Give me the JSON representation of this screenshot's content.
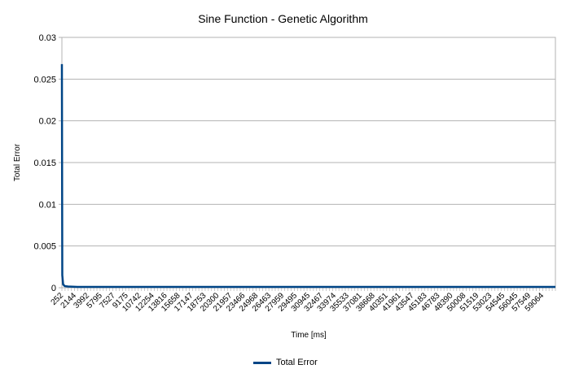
{
  "chart_data": {
    "type": "line",
    "title": "Sine Function - Genetic Algorithm",
    "xlabel": "Time [ms]",
    "ylabel": "Total Error",
    "ylim": [
      0,
      0.03
    ],
    "yticks": [
      "0",
      "0.005",
      "0.01",
      "0.015",
      "0.02",
      "0.025",
      "0.03"
    ],
    "x_tick_labels": [
      "252",
      "2144",
      "3992",
      "5795",
      "7527",
      "9175",
      "10742",
      "12254",
      "13816",
      "15658",
      "17147",
      "18753",
      "20300",
      "21957",
      "23466",
      "24968",
      "26463",
      "27959",
      "29495",
      "30945",
      "32467",
      "33974",
      "35533",
      "37081",
      "38668",
      "40351",
      "41961",
      "43547",
      "45183",
      "46783",
      "48390",
      "50008",
      "51519",
      "53023",
      "54545",
      "56045",
      "57549",
      "59064"
    ],
    "grid": "horizontal",
    "legend_position": "bottom",
    "series": [
      {
        "name": "Total Error",
        "color": "#004586",
        "x": [
          252,
          300,
          400,
          600,
          1000,
          2144,
          5795,
          13816,
          23466,
          33974,
          45183,
          53023,
          59064,
          60500
        ],
        "y": [
          0.0268,
          0.0015,
          0.0004,
          0.0002,
          0.00015,
          0.0001,
          0.0001,
          0.0001,
          0.0001,
          0.0001,
          0.0001,
          0.0001,
          0.0001,
          0.0001
        ]
      }
    ]
  }
}
